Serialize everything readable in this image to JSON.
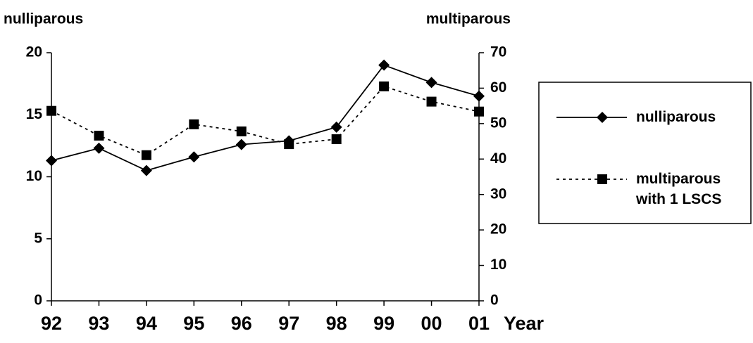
{
  "chart_data": {
    "type": "line",
    "y_label": "nulliparous",
    "y2_label": "multiparous",
    "x_label": "Year",
    "categories": [
      "92",
      "93",
      "94",
      "95",
      "96",
      "97",
      "98",
      "99",
      "00",
      "01"
    ],
    "series": [
      {
        "name": "nulliparous",
        "color": "#000000",
        "line_style": "solid",
        "marker": "diamond",
        "values": [
          11.3,
          12.3,
          10.5,
          11.6,
          12.6,
          12.9,
          14.0,
          19.0,
          17.6,
          16.5
        ]
      },
      {
        "name": "multiparous with 1 LSCS",
        "color": "#000000",
        "line_style": "dotted",
        "marker": "square",
        "axis": "y2",
        "values": [
          53.6,
          46.6,
          41.1,
          49.8,
          47.8,
          44.2,
          45.6,
          60.5,
          56.2,
          53.4
        ]
      }
    ],
    "ylim": [
      0,
      20
    ],
    "yticks": [
      0,
      5,
      10,
      15,
      20
    ],
    "y2lim": [
      0,
      70
    ],
    "y2ticks": [
      0,
      10,
      20,
      30,
      40,
      50,
      60,
      70
    ],
    "grid": false
  }
}
